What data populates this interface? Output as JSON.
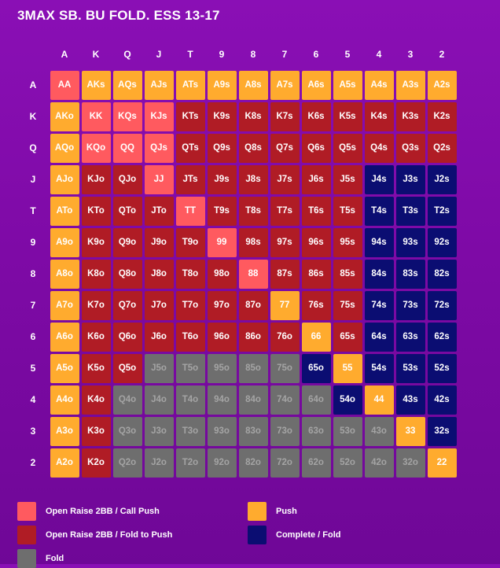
{
  "title": "3MAX SB. BU FOLD. ESS 13-17",
  "ranks": [
    "A",
    "K",
    "Q",
    "J",
    "T",
    "9",
    "8",
    "7",
    "6",
    "5",
    "4",
    "3",
    "2"
  ],
  "colors": {
    "open_raise_call_push": "#ff5a5f",
    "open_raise_fold_to_push": "#b01c25",
    "push": "#ffab2e",
    "complete_fold": "#0b0d72",
    "fold": "#6e6e6e"
  },
  "text_colors": {
    "open_raise_call_push": "#ffffff",
    "open_raise_fold_to_push": "#ffffff",
    "push": "#ffffff",
    "complete_fold": "#ffffff",
    "fold": "#a4a4a4"
  },
  "grid": [
    [
      {
        "label": "AA",
        "action": "open_raise_call_push"
      },
      {
        "label": "AKs",
        "action": "push"
      },
      {
        "label": "AQs",
        "action": "push"
      },
      {
        "label": "AJs",
        "action": "push"
      },
      {
        "label": "ATs",
        "action": "push"
      },
      {
        "label": "A9s",
        "action": "push"
      },
      {
        "label": "A8s",
        "action": "push"
      },
      {
        "label": "A7s",
        "action": "push"
      },
      {
        "label": "A6s",
        "action": "push"
      },
      {
        "label": "A5s",
        "action": "push"
      },
      {
        "label": "A4s",
        "action": "push"
      },
      {
        "label": "A3s",
        "action": "push"
      },
      {
        "label": "A2s",
        "action": "push"
      }
    ],
    [
      {
        "label": "AKo",
        "action": "push"
      },
      {
        "label": "KK",
        "action": "open_raise_call_push"
      },
      {
        "label": "KQs",
        "action": "open_raise_call_push"
      },
      {
        "label": "KJs",
        "action": "open_raise_call_push"
      },
      {
        "label": "KTs",
        "action": "open_raise_fold_to_push"
      },
      {
        "label": "K9s",
        "action": "open_raise_fold_to_push"
      },
      {
        "label": "K8s",
        "action": "open_raise_fold_to_push"
      },
      {
        "label": "K7s",
        "action": "open_raise_fold_to_push"
      },
      {
        "label": "K6s",
        "action": "open_raise_fold_to_push"
      },
      {
        "label": "K5s",
        "action": "open_raise_fold_to_push"
      },
      {
        "label": "K4s",
        "action": "open_raise_fold_to_push"
      },
      {
        "label": "K3s",
        "action": "open_raise_fold_to_push"
      },
      {
        "label": "K2s",
        "action": "open_raise_fold_to_push"
      }
    ],
    [
      {
        "label": "AQo",
        "action": "push"
      },
      {
        "label": "KQo",
        "action": "open_raise_call_push"
      },
      {
        "label": "QQ",
        "action": "open_raise_call_push"
      },
      {
        "label": "QJs",
        "action": "open_raise_call_push"
      },
      {
        "label": "QTs",
        "action": "open_raise_fold_to_push"
      },
      {
        "label": "Q9s",
        "action": "open_raise_fold_to_push"
      },
      {
        "label": "Q8s",
        "action": "open_raise_fold_to_push"
      },
      {
        "label": "Q7s",
        "action": "open_raise_fold_to_push"
      },
      {
        "label": "Q6s",
        "action": "open_raise_fold_to_push"
      },
      {
        "label": "Q5s",
        "action": "open_raise_fold_to_push"
      },
      {
        "label": "Q4s",
        "action": "open_raise_fold_to_push"
      },
      {
        "label": "Q3s",
        "action": "open_raise_fold_to_push"
      },
      {
        "label": "Q2s",
        "action": "open_raise_fold_to_push"
      }
    ],
    [
      {
        "label": "AJo",
        "action": "push"
      },
      {
        "label": "KJo",
        "action": "open_raise_fold_to_push"
      },
      {
        "label": "QJo",
        "action": "open_raise_fold_to_push"
      },
      {
        "label": "JJ",
        "action": "open_raise_call_push"
      },
      {
        "label": "JTs",
        "action": "open_raise_fold_to_push"
      },
      {
        "label": "J9s",
        "action": "open_raise_fold_to_push"
      },
      {
        "label": "J8s",
        "action": "open_raise_fold_to_push"
      },
      {
        "label": "J7s",
        "action": "open_raise_fold_to_push"
      },
      {
        "label": "J6s",
        "action": "open_raise_fold_to_push"
      },
      {
        "label": "J5s",
        "action": "open_raise_fold_to_push"
      },
      {
        "label": "J4s",
        "action": "complete_fold"
      },
      {
        "label": "J3s",
        "action": "complete_fold"
      },
      {
        "label": "J2s",
        "action": "complete_fold"
      }
    ],
    [
      {
        "label": "ATo",
        "action": "push"
      },
      {
        "label": "KTo",
        "action": "open_raise_fold_to_push"
      },
      {
        "label": "QTo",
        "action": "open_raise_fold_to_push"
      },
      {
        "label": "JTo",
        "action": "open_raise_fold_to_push"
      },
      {
        "label": "TT",
        "action": "open_raise_call_push"
      },
      {
        "label": "T9s",
        "action": "open_raise_fold_to_push"
      },
      {
        "label": "T8s",
        "action": "open_raise_fold_to_push"
      },
      {
        "label": "T7s",
        "action": "open_raise_fold_to_push"
      },
      {
        "label": "T6s",
        "action": "open_raise_fold_to_push"
      },
      {
        "label": "T5s",
        "action": "open_raise_fold_to_push"
      },
      {
        "label": "T4s",
        "action": "complete_fold"
      },
      {
        "label": "T3s",
        "action": "complete_fold"
      },
      {
        "label": "T2s",
        "action": "complete_fold"
      }
    ],
    [
      {
        "label": "A9o",
        "action": "push"
      },
      {
        "label": "K9o",
        "action": "open_raise_fold_to_push"
      },
      {
        "label": "Q9o",
        "action": "open_raise_fold_to_push"
      },
      {
        "label": "J9o",
        "action": "open_raise_fold_to_push"
      },
      {
        "label": "T9o",
        "action": "open_raise_fold_to_push"
      },
      {
        "label": "99",
        "action": "open_raise_call_push"
      },
      {
        "label": "98s",
        "action": "open_raise_fold_to_push"
      },
      {
        "label": "97s",
        "action": "open_raise_fold_to_push"
      },
      {
        "label": "96s",
        "action": "open_raise_fold_to_push"
      },
      {
        "label": "95s",
        "action": "open_raise_fold_to_push"
      },
      {
        "label": "94s",
        "action": "complete_fold"
      },
      {
        "label": "93s",
        "action": "complete_fold"
      },
      {
        "label": "92s",
        "action": "complete_fold"
      }
    ],
    [
      {
        "label": "A8o",
        "action": "push"
      },
      {
        "label": "K8o",
        "action": "open_raise_fold_to_push"
      },
      {
        "label": "Q8o",
        "action": "open_raise_fold_to_push"
      },
      {
        "label": "J8o",
        "action": "open_raise_fold_to_push"
      },
      {
        "label": "T8o",
        "action": "open_raise_fold_to_push"
      },
      {
        "label": "98o",
        "action": "open_raise_fold_to_push"
      },
      {
        "label": "88",
        "action": "open_raise_call_push"
      },
      {
        "label": "87s",
        "action": "open_raise_fold_to_push"
      },
      {
        "label": "86s",
        "action": "open_raise_fold_to_push"
      },
      {
        "label": "85s",
        "action": "open_raise_fold_to_push"
      },
      {
        "label": "84s",
        "action": "complete_fold"
      },
      {
        "label": "83s",
        "action": "complete_fold"
      },
      {
        "label": "82s",
        "action": "complete_fold"
      }
    ],
    [
      {
        "label": "A7o",
        "action": "push"
      },
      {
        "label": "K7o",
        "action": "open_raise_fold_to_push"
      },
      {
        "label": "Q7o",
        "action": "open_raise_fold_to_push"
      },
      {
        "label": "J7o",
        "action": "open_raise_fold_to_push"
      },
      {
        "label": "T7o",
        "action": "open_raise_fold_to_push"
      },
      {
        "label": "97o",
        "action": "open_raise_fold_to_push"
      },
      {
        "label": "87o",
        "action": "open_raise_fold_to_push"
      },
      {
        "label": "77",
        "action": "push"
      },
      {
        "label": "76s",
        "action": "open_raise_fold_to_push"
      },
      {
        "label": "75s",
        "action": "open_raise_fold_to_push"
      },
      {
        "label": "74s",
        "action": "complete_fold"
      },
      {
        "label": "73s",
        "action": "complete_fold"
      },
      {
        "label": "72s",
        "action": "complete_fold"
      }
    ],
    [
      {
        "label": "A6o",
        "action": "push"
      },
      {
        "label": "K6o",
        "action": "open_raise_fold_to_push"
      },
      {
        "label": "Q6o",
        "action": "open_raise_fold_to_push"
      },
      {
        "label": "J6o",
        "action": "open_raise_fold_to_push"
      },
      {
        "label": "T6o",
        "action": "open_raise_fold_to_push"
      },
      {
        "label": "96o",
        "action": "open_raise_fold_to_push"
      },
      {
        "label": "86o",
        "action": "open_raise_fold_to_push"
      },
      {
        "label": "76o",
        "action": "open_raise_fold_to_push"
      },
      {
        "label": "66",
        "action": "push"
      },
      {
        "label": "65s",
        "action": "open_raise_fold_to_push"
      },
      {
        "label": "64s",
        "action": "complete_fold"
      },
      {
        "label": "63s",
        "action": "complete_fold"
      },
      {
        "label": "62s",
        "action": "complete_fold"
      }
    ],
    [
      {
        "label": "A5o",
        "action": "push"
      },
      {
        "label": "K5o",
        "action": "open_raise_fold_to_push"
      },
      {
        "label": "Q5o",
        "action": "open_raise_fold_to_push"
      },
      {
        "label": "J5o",
        "action": "fold"
      },
      {
        "label": "T5o",
        "action": "fold"
      },
      {
        "label": "95o",
        "action": "fold"
      },
      {
        "label": "85o",
        "action": "fold"
      },
      {
        "label": "75o",
        "action": "fold"
      },
      {
        "label": "65o",
        "action": "complete_fold"
      },
      {
        "label": "55",
        "action": "push"
      },
      {
        "label": "54s",
        "action": "complete_fold"
      },
      {
        "label": "53s",
        "action": "complete_fold"
      },
      {
        "label": "52s",
        "action": "complete_fold"
      }
    ],
    [
      {
        "label": "A4o",
        "action": "push"
      },
      {
        "label": "K4o",
        "action": "open_raise_fold_to_push"
      },
      {
        "label": "Q4o",
        "action": "fold"
      },
      {
        "label": "J4o",
        "action": "fold"
      },
      {
        "label": "T4o",
        "action": "fold"
      },
      {
        "label": "94o",
        "action": "fold"
      },
      {
        "label": "84o",
        "action": "fold"
      },
      {
        "label": "74o",
        "action": "fold"
      },
      {
        "label": "64o",
        "action": "fold"
      },
      {
        "label": "54o",
        "action": "complete_fold"
      },
      {
        "label": "44",
        "action": "push"
      },
      {
        "label": "43s",
        "action": "complete_fold"
      },
      {
        "label": "42s",
        "action": "complete_fold"
      }
    ],
    [
      {
        "label": "A3o",
        "action": "push"
      },
      {
        "label": "K3o",
        "action": "open_raise_fold_to_push"
      },
      {
        "label": "Q3o",
        "action": "fold"
      },
      {
        "label": "J3o",
        "action": "fold"
      },
      {
        "label": "T3o",
        "action": "fold"
      },
      {
        "label": "93o",
        "action": "fold"
      },
      {
        "label": "83o",
        "action": "fold"
      },
      {
        "label": "73o",
        "action": "fold"
      },
      {
        "label": "63o",
        "action": "fold"
      },
      {
        "label": "53o",
        "action": "fold"
      },
      {
        "label": "43o",
        "action": "fold"
      },
      {
        "label": "33",
        "action": "push"
      },
      {
        "label": "32s",
        "action": "complete_fold"
      }
    ],
    [
      {
        "label": "A2o",
        "action": "push"
      },
      {
        "label": "K2o",
        "action": "open_raise_fold_to_push"
      },
      {
        "label": "Q2o",
        "action": "fold"
      },
      {
        "label": "J2o",
        "action": "fold"
      },
      {
        "label": "T2o",
        "action": "fold"
      },
      {
        "label": "92o",
        "action": "fold"
      },
      {
        "label": "82o",
        "action": "fold"
      },
      {
        "label": "72o",
        "action": "fold"
      },
      {
        "label": "62o",
        "action": "fold"
      },
      {
        "label": "52o",
        "action": "fold"
      },
      {
        "label": "42o",
        "action": "fold"
      },
      {
        "label": "32o",
        "action": "fold"
      },
      {
        "label": "22",
        "action": "push"
      }
    ]
  ],
  "legend": [
    {
      "label": "Open Raise 2BB / Call Push",
      "action": "open_raise_call_push"
    },
    {
      "label": "Push",
      "action": "push"
    },
    {
      "label": "Open Raise 2BB / Fold to Push",
      "action": "open_raise_fold_to_push"
    },
    {
      "label": "Complete / Fold",
      "action": "complete_fold"
    },
    {
      "label": "Fold",
      "action": "fold"
    }
  ]
}
